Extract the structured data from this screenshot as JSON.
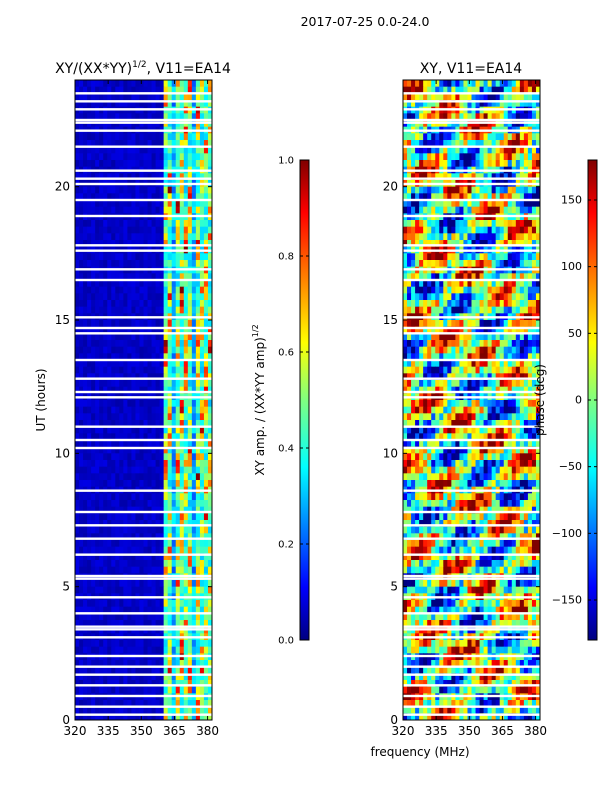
{
  "suptitle": "2017-07-25 0.0-24.0",
  "colors": {
    "background": "#ffffff",
    "axis": "#000000",
    "gap": "#ffffff"
  },
  "chart_data": [
    {
      "type": "heatmap",
      "title": "XY/(XX*YY)",
      "title_exp": "1/2",
      "title_suffix": ", V11=EA14",
      "xlabel": "",
      "ylabel": "UT (hours)",
      "xlim": [
        320,
        382
      ],
      "ylim": [
        0,
        24
      ],
      "xticks": [
        320,
        335,
        350,
        365,
        380
      ],
      "yticks": [
        0,
        5,
        10,
        15,
        20
      ],
      "colormap": "jet",
      "colorbar": {
        "label": "XY amp. / (XX*YY amp)",
        "label_exp": "1/2",
        "range": [
          0.0,
          1.0
        ],
        "ticks": [
          "0.0",
          "0.2",
          "0.4",
          "0.6",
          "0.8",
          "1.0"
        ]
      },
      "notes": "Mostly low (~0.05) below 362 MHz; high amplitude bands between ~362 and ~382 MHz"
    },
    {
      "type": "heatmap",
      "title": "XY, V11=EA14",
      "xlabel": "frequency (MHz)",
      "ylabel": "",
      "xlim": [
        320,
        382
      ],
      "ylim": [
        0,
        24
      ],
      "xticks": [
        320,
        335,
        350,
        365,
        380
      ],
      "yticks": [
        0,
        5,
        10,
        15,
        20
      ],
      "colormap": "jet",
      "colorbar": {
        "label": "phase (deg)",
        "range": [
          -180,
          180
        ],
        "ticks": [
          "150",
          "100",
          "50",
          "0",
          "−50",
          "−100",
          "−150"
        ]
      },
      "notes": "Phase varies widely across the full band (noisy pattern)"
    }
  ],
  "gap_times_hours": [
    0.2,
    0.5,
    0.9,
    1.3,
    1.7,
    2.0,
    2.4,
    3.1,
    3.4,
    3.5,
    4.0,
    4.6,
    5.3,
    5.4,
    6.2,
    6.8,
    7.3,
    7.8,
    8.6,
    10.2,
    10.5,
    11.0,
    12.1,
    12.3,
    12.8,
    13.5,
    14.5,
    14.7,
    15.1,
    16.5,
    16.9,
    17.6,
    17.8,
    18.9,
    19.5,
    20.1,
    20.3,
    20.6,
    21.5,
    22.1,
    22.4,
    22.5,
    22.9,
    23.2,
    23.5
  ]
}
